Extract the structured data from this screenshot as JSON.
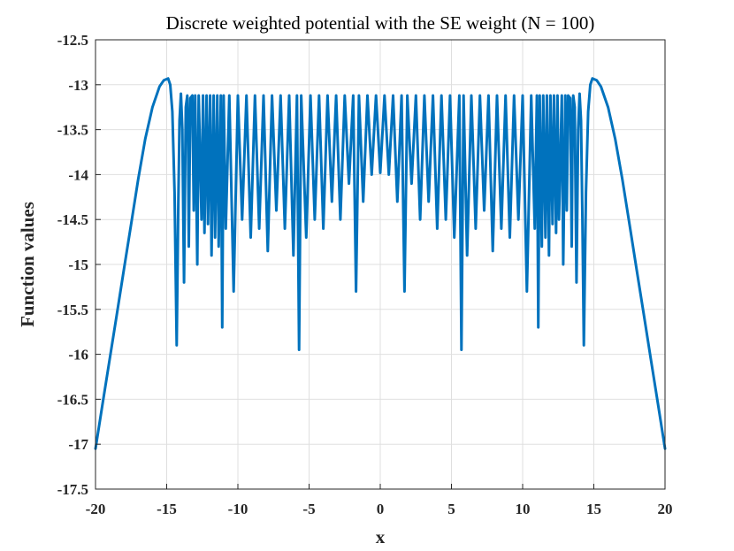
{
  "chart_data": {
    "type": "line",
    "title": "Discrete weighted potential with the SE weight (N = 100)",
    "xlabel": "x",
    "ylabel": "Function values",
    "xlim": [
      -20,
      20
    ],
    "ylim": [
      -17.5,
      -12.5
    ],
    "xticks": [
      "-20",
      "-15",
      "-10",
      "-5",
      "0",
      "5",
      "10",
      "15",
      "20"
    ],
    "yticks": [
      "-12.5",
      "-13",
      "-13.5",
      "-14",
      "-14.5",
      "-15",
      "-15.5",
      "-16",
      "-16.5",
      "-17",
      "-17.5"
    ],
    "grid": true,
    "series_color": "#0072BD",
    "series": [
      {
        "x": [
          -20,
          -19.5,
          -19,
          -18.5,
          -18,
          -17.5,
          -17,
          -16.5,
          -16,
          -15.5,
          -15.2,
          -14.9,
          -14.75,
          -14.6,
          -14.45,
          -14.3,
          -14.2,
          -14.1,
          -14.0,
          -13.9,
          -13.78,
          -13.66,
          -13.55,
          -13.5,
          -13.45,
          -13.34,
          -13.2,
          -13.1,
          -13.0,
          -12.85,
          -12.75,
          -12.55,
          -12.45,
          -12.35,
          -12.2,
          -12.1,
          -11.95,
          -11.85,
          -11.7,
          -11.6,
          -11.45,
          -11.35,
          -11.2,
          -11.1,
          -11.0,
          -10.85,
          -10.6,
          -10.3,
          -10.0,
          -9.7,
          -9.4,
          -9.1,
          -8.8,
          -8.5,
          -8.2,
          -7.9,
          -7.6,
          -7.3,
          -7.0,
          -6.7,
          -6.4,
          -6.1,
          -5.85,
          -5.7,
          -5.55,
          -5.2,
          -4.9,
          -4.6,
          -4.3,
          -4.0,
          -3.7,
          -3.4,
          -3.1,
          -2.8,
          -2.5,
          -2.2,
          -1.9,
          -1.7,
          -1.5,
          -1.2,
          -0.9,
          -0.6,
          -0.3,
          0,
          0.3,
          0.6,
          0.9,
          1.2,
          1.5,
          1.7,
          1.9,
          2.2,
          2.5,
          2.8,
          3.1,
          3.4,
          3.7,
          4.0,
          4.3,
          4.6,
          4.9,
          5.2,
          5.55,
          5.7,
          5.85,
          6.1,
          6.4,
          6.7,
          7.0,
          7.3,
          7.6,
          7.9,
          8.2,
          8.5,
          8.8,
          9.1,
          9.4,
          9.7,
          10.0,
          10.3,
          10.6,
          10.85,
          11.0,
          11.1,
          11.2,
          11.35,
          11.45,
          11.6,
          11.7,
          11.85,
          11.95,
          12.1,
          12.2,
          12.35,
          12.45,
          12.55,
          12.75,
          12.85,
          13.0,
          13.1,
          13.2,
          13.34,
          13.45,
          13.5,
          13.55,
          13.66,
          13.78,
          13.9,
          14.0,
          14.1,
          14.2,
          14.3,
          14.45,
          14.6,
          14.75,
          14.9,
          15.2,
          15.5,
          16,
          16.5,
          17,
          17.5,
          18,
          18.5,
          19,
          19.5,
          20
        ],
        "y": [
          -17.05,
          -16.55,
          -16.05,
          -15.55,
          -15.05,
          -14.55,
          -14.05,
          -13.6,
          -13.25,
          -13.02,
          -12.95,
          -12.93,
          -13.0,
          -13.3,
          -14.2,
          -15.9,
          -14.5,
          -13.4,
          -13.1,
          -13.5,
          -15.2,
          -13.25,
          -13.12,
          -13.6,
          -14.8,
          -13.15,
          -13.12,
          -14.4,
          -13.12,
          -15.0,
          -13.12,
          -14.5,
          -13.12,
          -14.65,
          -13.12,
          -14.55,
          -13.12,
          -14.9,
          -13.12,
          -14.7,
          -13.12,
          -14.8,
          -13.12,
          -15.7,
          -13.12,
          -14.6,
          -13.12,
          -15.3,
          -13.12,
          -14.5,
          -13.12,
          -14.7,
          -13.12,
          -14.6,
          -13.12,
          -14.85,
          -13.12,
          -14.4,
          -13.12,
          -14.6,
          -13.12,
          -14.9,
          -13.12,
          -15.95,
          -13.12,
          -14.7,
          -13.12,
          -14.5,
          -13.12,
          -14.6,
          -13.12,
          -14.3,
          -13.12,
          -14.5,
          -13.12,
          -14.1,
          -13.12,
          -15.3,
          -13.12,
          -14.3,
          -13.12,
          -14.0,
          -13.12,
          -13.98,
          -13.12,
          -14.0,
          -13.12,
          -14.3,
          -13.12,
          -15.3,
          -13.12,
          -14.1,
          -13.12,
          -14.5,
          -13.12,
          -14.3,
          -13.12,
          -14.6,
          -13.12,
          -14.5,
          -13.12,
          -14.7,
          -13.12,
          -15.95,
          -13.12,
          -14.9,
          -13.12,
          -14.6,
          -13.12,
          -14.4,
          -13.12,
          -14.85,
          -13.12,
          -14.6,
          -13.12,
          -14.7,
          -13.12,
          -14.5,
          -13.12,
          -15.3,
          -13.12,
          -14.6,
          -13.12,
          -15.7,
          -13.12,
          -14.8,
          -13.12,
          -14.7,
          -13.12,
          -14.9,
          -13.12,
          -14.55,
          -13.12,
          -14.65,
          -13.12,
          -14.5,
          -13.12,
          -15.0,
          -13.12,
          -14.4,
          -13.12,
          -13.15,
          -14.8,
          -13.6,
          -13.12,
          -13.25,
          -15.2,
          -13.5,
          -13.1,
          -13.4,
          -14.5,
          -15.9,
          -14.2,
          -13.3,
          -13.0,
          -12.93,
          -12.95,
          -13.02,
          -13.25,
          -13.6,
          -14.05,
          -14.55,
          -15.05,
          -15.55,
          -16.05,
          -16.55,
          -17.05
        ]
      }
    ]
  }
}
